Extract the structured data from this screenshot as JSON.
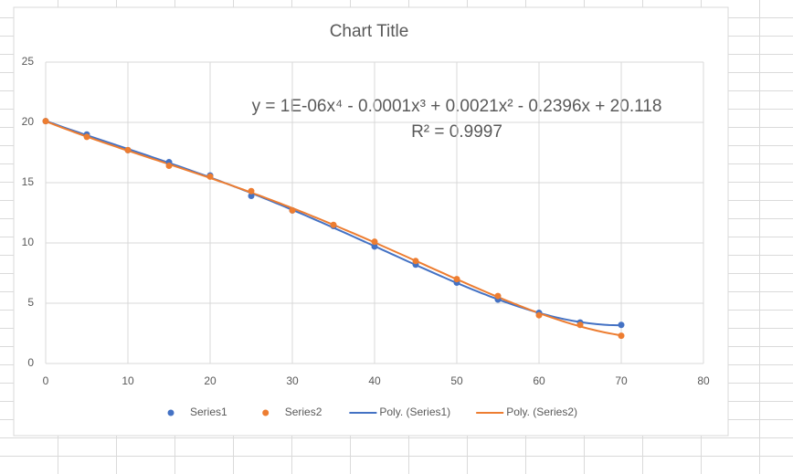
{
  "chart_data": {
    "type": "scatter",
    "title": "Chart Title",
    "xlim": [
      0,
      80
    ],
    "xticks": [
      0,
      10,
      20,
      30,
      40,
      50,
      60,
      70,
      80
    ],
    "ylim": [
      0,
      25
    ],
    "yticks": [
      0,
      5,
      10,
      15,
      20,
      25
    ],
    "grid": true,
    "x": [
      0,
      5,
      10,
      15,
      20,
      25,
      30,
      35,
      40,
      45,
      50,
      55,
      60,
      65,
      70
    ],
    "series": [
      {
        "name": "Series1",
        "color": "#4472c4",
        "values": [
          20.1,
          19.0,
          17.7,
          16.7,
          15.6,
          13.9,
          12.7,
          11.4,
          9.7,
          8.2,
          6.7,
          5.3,
          4.2,
          3.4,
          3.2
        ],
        "trendline": {
          "name": "Poly. (Series1)",
          "kind": "poly",
          "order": 4
        }
      },
      {
        "name": "Series2",
        "color": "#ed7d31",
        "values": [
          20.1,
          18.8,
          17.7,
          16.4,
          15.5,
          14.3,
          12.7,
          11.5,
          10.1,
          8.5,
          7.0,
          5.6,
          4.0,
          3.2,
          2.3
        ],
        "trendline": {
          "name": "Poly. (Series2)",
          "kind": "poly",
          "order": 4
        }
      }
    ],
    "annotations": [
      "y = 1E-06x⁴ - 0.0001x³ + 0.0021x² - 0.2396x + 20.118",
      "R² = 0.9997"
    ]
  }
}
